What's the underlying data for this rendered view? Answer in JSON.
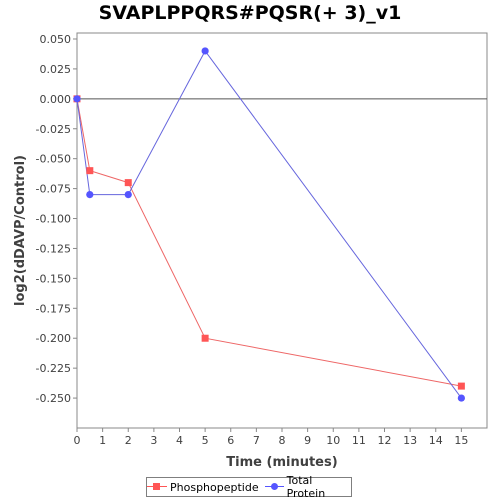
{
  "chart_data": {
    "type": "line",
    "title": "SVAPLPPQRS#PQSR(+ 3)_v1",
    "xlabel": "Time (minutes)",
    "ylabel": "log2(dDAVP/Control)",
    "xlim": [
      0,
      16
    ],
    "ylim": [
      -0.275,
      0.055
    ],
    "x_ticks": [
      0,
      1,
      2,
      3,
      4,
      5,
      6,
      7,
      8,
      9,
      10,
      11,
      12,
      13,
      14,
      15
    ],
    "y_ticks": [
      0.05,
      0.025,
      0.0,
      -0.025,
      -0.05,
      -0.075,
      -0.1,
      -0.125,
      -0.15,
      -0.175,
      -0.2,
      -0.225,
      -0.25
    ],
    "y_tick_labels": [
      "0.050",
      "0.025",
      "0.000",
      "-0.025",
      "-0.050",
      "-0.075",
      "-0.100",
      "-0.125",
      "-0.150",
      "-0.175",
      "-0.200",
      "-0.225",
      "-0.250"
    ],
    "zero_line": true,
    "grid": false,
    "legend_position": "bottom",
    "series": [
      {
        "name": "Phosphopeptide",
        "marker": "square",
        "color": "#ff5555",
        "line_color": "#ee6666",
        "x": [
          0,
          0.5,
          2,
          5,
          15
        ],
        "y": [
          0.0,
          -0.06,
          -0.07,
          -0.2,
          -0.24
        ]
      },
      {
        "name": "Total Protein",
        "marker": "circle",
        "color": "#5555ff",
        "line_color": "#6666dd",
        "x": [
          0,
          0.5,
          2,
          5,
          15
        ],
        "y": [
          0.0,
          -0.08,
          -0.08,
          0.04,
          -0.25
        ]
      }
    ]
  }
}
